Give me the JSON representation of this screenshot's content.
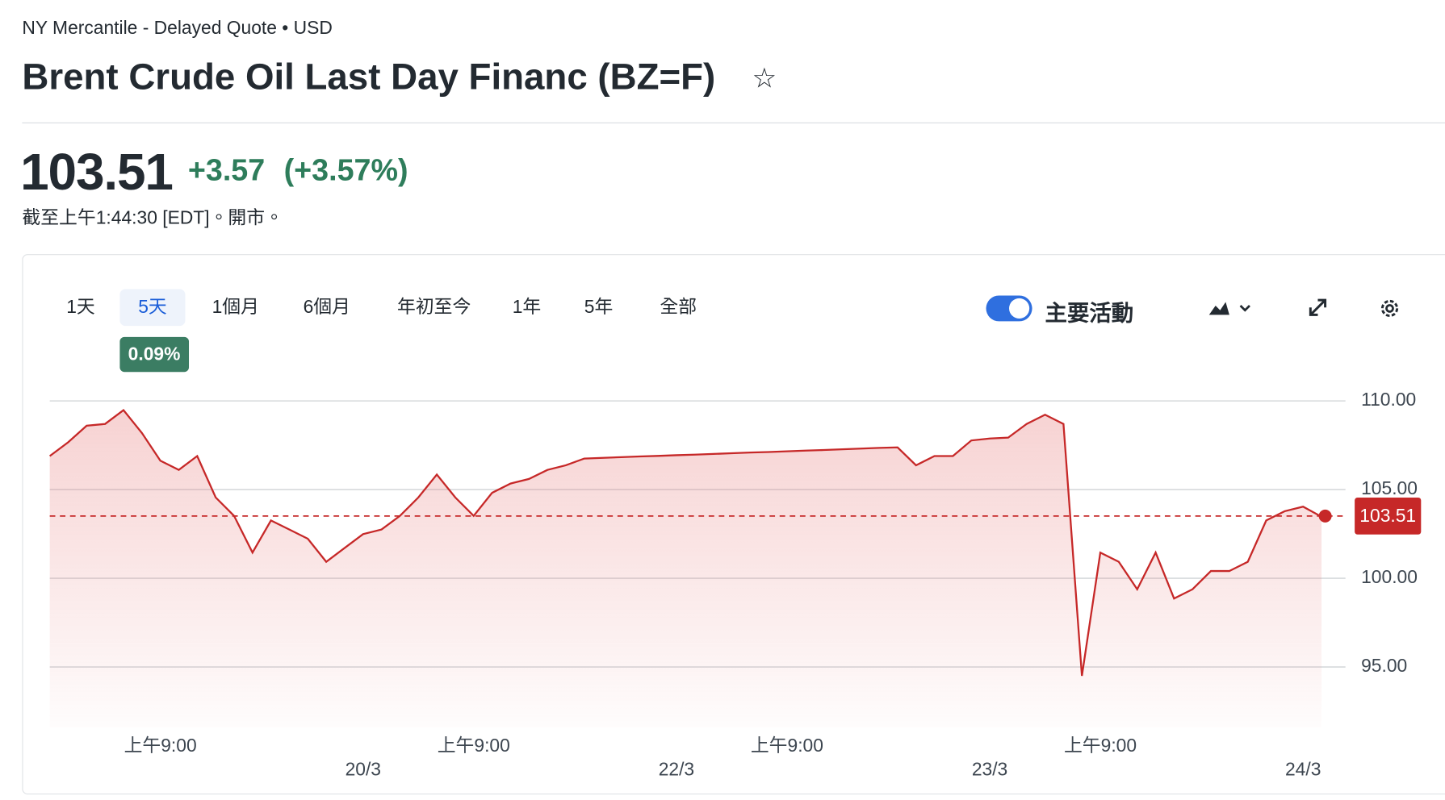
{
  "header": {
    "exchange": "NY Mercantile - Delayed Quote • USD",
    "title": "Brent Crude Oil Last Day Financ (BZ=F)",
    "change": "+3.57",
    "change_percent": "(+3.57%)",
    "as_of": "截至上午1:44:30 [EDT]。開市。"
  },
  "toolbar": {
    "ranges": [
      "1天",
      "5天",
      "1個月",
      "6個月",
      "年初至今",
      "1年",
      "5年",
      "全部"
    ],
    "range_change": "0.09%",
    "toggle_label": "主要活動"
  },
  "chart_data": {
    "type": "line",
    "categories": [
      null,
      null,
      null,
      null,
      null,
      null,
      "上午9:00",
      null,
      null,
      null,
      null,
      null,
      null,
      null,
      null,
      null,
      null,
      null,
      null,
      null,
      null,
      null,
      null,
      "上午9:00",
      null,
      null,
      null,
      null,
      null,
      null,
      null,
      null,
      null,
      null,
      null,
      null,
      null,
      null,
      null,
      null,
      "上午9:00",
      null,
      null,
      null,
      null,
      null,
      null,
      null,
      null,
      null,
      null,
      null,
      null,
      null,
      null,
      null,
      null,
      "上午9:00",
      null,
      null,
      null,
      null,
      null,
      null,
      null,
      null,
      null,
      null,
      null,
      null
    ],
    "dates": [
      null,
      null,
      null,
      null,
      null,
      null,
      null,
      null,
      null,
      null,
      null,
      null,
      null,
      null,
      null,
      null,
      null,
      "20/3",
      null,
      null,
      null,
      null,
      null,
      null,
      null,
      null,
      null,
      null,
      null,
      null,
      null,
      null,
      null,
      null,
      "22/3",
      null,
      null,
      null,
      null,
      null,
      null,
      null,
      null,
      null,
      null,
      null,
      null,
      null,
      null,
      null,
      null,
      "23/3",
      null,
      null,
      null,
      null,
      null,
      null,
      null,
      null,
      null,
      null,
      null,
      null,
      null,
      null,
      null,
      null,
      "24/3",
      null
    ],
    "series": [
      {
        "color": "#c62828",
        "values": [
          106.89,
          107.67,
          108.6,
          108.7,
          109.48,
          108.19,
          106.63,
          106.11,
          106.89,
          104.56,
          103.52,
          101.45,
          103.26,
          102.75,
          102.23,
          100.93,
          101.71,
          102.49,
          102.75,
          103.52,
          104.56,
          105.85,
          104.56,
          103.52,
          104.82,
          105.34,
          105.6,
          106.11,
          106.37,
          106.75,
          106.79,
          106.83,
          106.87,
          106.9,
          106.94,
          106.97,
          107.01,
          107.05,
          107.09,
          107.12,
          107.16,
          107.2,
          107.23,
          107.27,
          107.31,
          107.35,
          107.38,
          106.37,
          106.89,
          106.89,
          107.77,
          107.88,
          107.93,
          108.7,
          109.22,
          108.7,
          94.5,
          101.45,
          100.93,
          99.38,
          101.45,
          98.86,
          99.38,
          100.41,
          100.41,
          100.93,
          103.26,
          103.78,
          104.04,
          103.47
        ]
      }
    ],
    "last_value": 103.51,
    "ylim": [
      91.6,
      112.1
    ],
    "yticks": [
      {
        "value": 95,
        "label": "95.00"
      },
      {
        "value": 100,
        "label": "100.00"
      },
      {
        "value": 105,
        "label": "105.00"
      },
      {
        "value": 110,
        "label": "110.00"
      }
    ],
    "grid": true
  }
}
